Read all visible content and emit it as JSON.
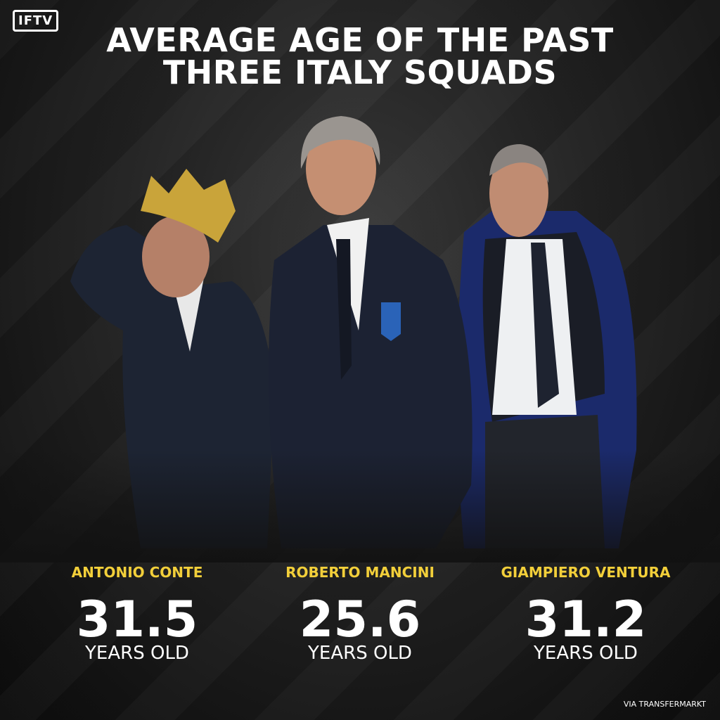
{
  "logo": "IFTV",
  "title_lines": [
    "AVERAGE AGE OF THE PAST",
    "THREE ITALY SQUADS"
  ],
  "coaches": [
    {
      "name": "ANTONIO CONTE",
      "age": 31.5,
      "unit": "YEARS OLD"
    },
    {
      "name": "ROBERTO MANCINI",
      "age": 25.6,
      "unit": "YEARS OLD"
    },
    {
      "name": "GIAMPIERO VENTURA",
      "age": 31.2,
      "unit": "YEARS OLD"
    }
  ],
  "source": "VIA TRANSFERMARKT"
}
